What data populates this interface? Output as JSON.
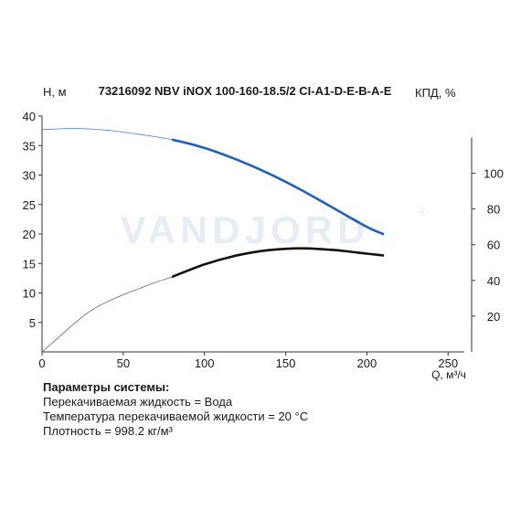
{
  "chart_data": {
    "type": "line",
    "title": "73216092 NBV iNOX 100-160-18.5/2 CI-A1-D-E-B-A-E",
    "xlabel": "Q, м³/ч",
    "ylabel": "H, м",
    "y2label": "КПД, %",
    "watermark": "VANDJORD",
    "watermark_mark": "®",
    "xlim": [
      0,
      260
    ],
    "ylim": [
      0,
      40
    ],
    "y2lim": [
      0,
      132
    ],
    "x_ticks": [
      "0",
      "50",
      "100",
      "150",
      "200",
      "250"
    ],
    "y_ticks": [
      "5",
      "10",
      "15",
      "20",
      "25",
      "30",
      "35",
      "40"
    ],
    "y2_ticks": [
      "20",
      "40",
      "60",
      "80",
      "100"
    ],
    "grid": false,
    "colors": {
      "head_curve": "#1f5fbf",
      "head_curve_extrapolated": "#5b8fd6",
      "efficiency_curve": "#111111",
      "efficiency_curve_extrapolated": "#777777",
      "watermark": "#e7edf5"
    },
    "series": [
      {
        "key": "head",
        "axis": "left",
        "x": [
          0,
          20,
          40,
          60,
          80,
          100,
          120,
          140,
          160,
          180,
          200,
          210
        ],
        "y": [
          37.7,
          37.9,
          37.6,
          36.9,
          36.0,
          34.6,
          32.6,
          30.2,
          27.4,
          24.3,
          21.2,
          20.0
        ]
      },
      {
        "key": "efficiency",
        "axis": "right",
        "x": [
          0,
          10,
          20,
          30,
          40,
          50,
          60,
          70,
          80,
          100,
          120,
          140,
          160,
          180,
          200,
          210
        ],
        "y": [
          0,
          8,
          16,
          23,
          28,
          32,
          35.5,
          39,
          42,
          49,
          54,
          57,
          58,
          57,
          55,
          54
        ]
      }
    ],
    "operating_range": [
      80,
      210
    ]
  },
  "params": {
    "title": "Параметры системы:",
    "lines": [
      "Перекачиваемая жидкость = Вода",
      "Температура перекачиваемой жидкости = 20 °C",
      "Плотность = 998.2 кг/м³"
    ]
  }
}
